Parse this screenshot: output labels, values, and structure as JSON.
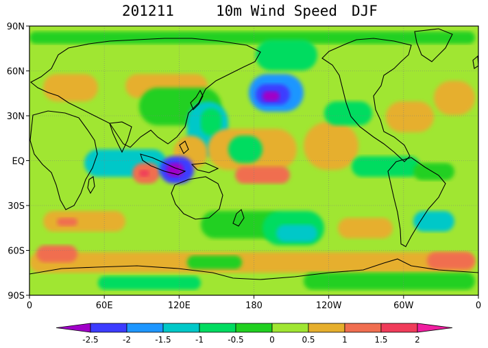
{
  "title": {
    "period": "201211",
    "variable": "10m Wind Speed",
    "season": "DJF"
  },
  "axes": {
    "lat_labels": [
      "90N",
      "60N",
      "30N",
      "EQ",
      "30S",
      "60S",
      "90S"
    ],
    "lon_labels": [
      "0",
      "60E",
      "120E",
      "180",
      "120W",
      "60W",
      "0"
    ]
  },
  "colorbar": {
    "levels": [
      "-2.5",
      "-2",
      "-1.5",
      "-1",
      "-0.5",
      "0",
      "0.5",
      "1",
      "1.5",
      "2"
    ],
    "colors": [
      "#a000c8",
      "#3c3cff",
      "#1e96ff",
      "#00c8c8",
      "#00dc60",
      "#20d020",
      "#a0e632",
      "#e6af2d",
      "#f06e50",
      "#f03c5a",
      "#f01ea0"
    ]
  },
  "palette": {
    "ocean_base": "#a0e632",
    "land_outline": "#000000",
    "grid": "#808080"
  }
}
